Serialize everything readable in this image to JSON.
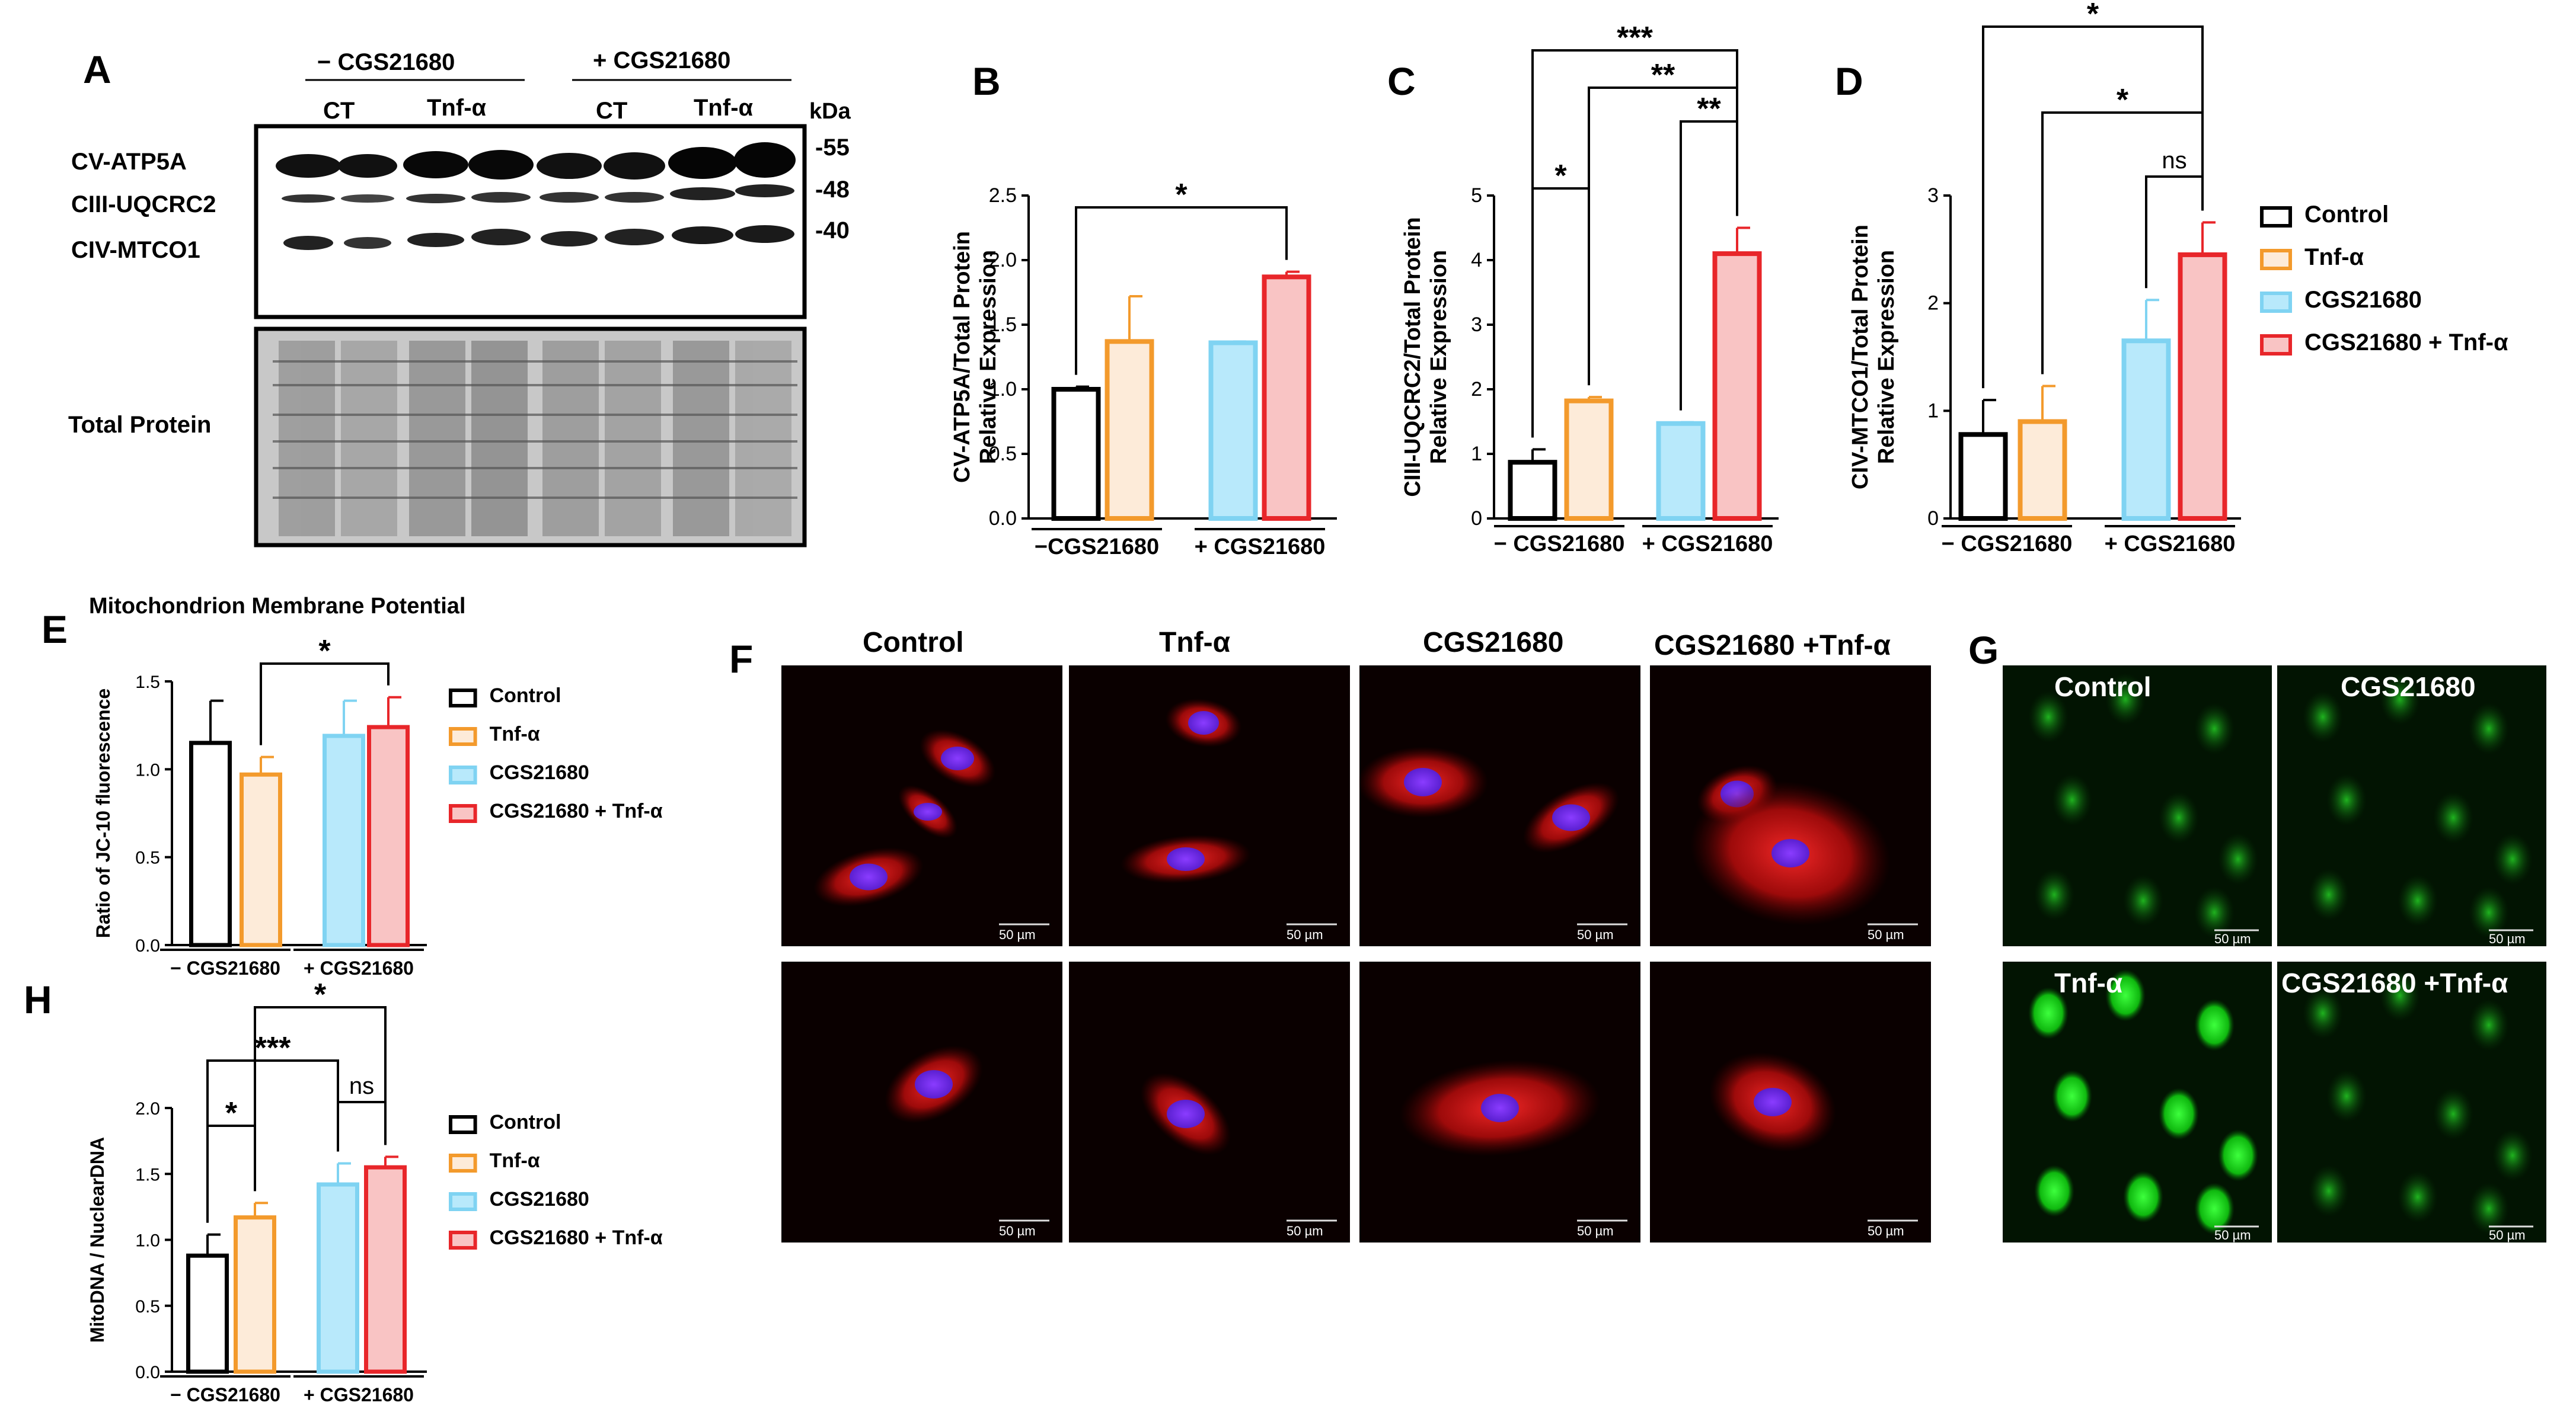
{
  "panel_letters": {
    "A": "A",
    "B": "B",
    "C": "C",
    "D": "D",
    "E": "E",
    "F": "F",
    "G": "G",
    "H": "H"
  },
  "colors": {
    "control": "#000000",
    "tnf": "#F39A2C",
    "cgs": "#7FD3F2",
    "cgs_tnf": "#E8262A",
    "control_fill": "#FFFFFF",
    "tnf_fill": "#FDEBD9",
    "cgs_fill": "#B8E9FB",
    "cgs_tnf_fill": "#F9C4C4"
  },
  "legend": [
    "Control",
    "Tnf-α",
    "CGS21680",
    "CGS21680 + Tnf-α"
  ],
  "blot": {
    "group_minus": "− CGS21680",
    "group_plus": "+ CGS21680",
    "lanes": [
      "CT",
      "Tnf-α",
      "CT",
      "Tnf-α"
    ],
    "kda": "kDa",
    "markers": [
      "-55",
      "-48",
      "-40"
    ],
    "bands": [
      "CV-ATP5A",
      "CIII-UQCRC2",
      "CIV-MTCO1"
    ],
    "total": "Total Protein"
  },
  "chart_data": [
    {
      "panel": "B",
      "type": "bar",
      "ylabel": "CV-ATP5A/Total Protein\nRelative Expression",
      "groups": [
        "−CGS21680",
        "+ CGS21680"
      ],
      "ylim": [
        0,
        2.5
      ],
      "yticks": [
        "0.0",
        "0.5",
        "1.0",
        "1.5",
        "2.0",
        "2.5"
      ],
      "series": [
        {
          "name": "Control",
          "values": [
            1.0
          ]
        },
        {
          "name": "Tnf-α",
          "values": [
            1.37
          ]
        },
        {
          "name": "CGS21680",
          "values": [
            1.36
          ]
        },
        {
          "name": "CGS21680 + Tnf-α",
          "values": [
            1.87
          ]
        }
      ],
      "errors": [
        0.02,
        0.35,
        0.01,
        0.04
      ],
      "annotations": [
        {
          "from": 0,
          "to": 3,
          "label": "*"
        }
      ]
    },
    {
      "panel": "C",
      "type": "bar",
      "ylabel": "CIII-UQCRC2/Total Protein\nRelative Expression",
      "groups": [
        "− CGS21680",
        "+ CGS21680"
      ],
      "ylim": [
        0,
        5
      ],
      "yticks": [
        "0",
        "1",
        "2",
        "3",
        "4",
        "5"
      ],
      "series": [
        {
          "name": "Control",
          "values": [
            0.87
          ]
        },
        {
          "name": "Tnf-α",
          "values": [
            1.82
          ]
        },
        {
          "name": "CGS21680",
          "values": [
            1.47
          ]
        },
        {
          "name": "CGS21680 + Tnf-α",
          "values": [
            4.1
          ]
        }
      ],
      "errors": [
        0.2,
        0.06,
        0.02,
        0.4
      ],
      "annotations": [
        {
          "from": 0,
          "to": 1,
          "label": "*"
        },
        {
          "from": 2,
          "to": 3,
          "label": "**"
        },
        {
          "from": 1,
          "to": 3,
          "label": "**"
        },
        {
          "from": 0,
          "to": 3,
          "label": "***"
        }
      ]
    },
    {
      "panel": "D",
      "type": "bar",
      "ylabel": "CIV-MTCO1/Total Protein\nRelative Expression",
      "groups": [
        "− CGS21680",
        "+ CGS21680"
      ],
      "ylim": [
        0,
        3
      ],
      "yticks": [
        "0",
        "1",
        "2",
        "3"
      ],
      "series": [
        {
          "name": "Control",
          "values": [
            0.78
          ]
        },
        {
          "name": "Tnf-α",
          "values": [
            0.9
          ]
        },
        {
          "name": "CGS21680",
          "values": [
            1.65
          ]
        },
        {
          "name": "CGS21680 + Tnf-α",
          "values": [
            2.45
          ]
        }
      ],
      "errors": [
        0.32,
        0.33,
        0.38,
        0.3
      ],
      "annotations": [
        {
          "from": 2,
          "to": 3,
          "label": "ns"
        },
        {
          "from": 1,
          "to": 3,
          "label": "*"
        },
        {
          "from": 0,
          "to": 3,
          "label": "*"
        }
      ]
    },
    {
      "panel": "E",
      "type": "bar",
      "title": "Mitochondrion Membrane Potential",
      "ylabel": "Ratio of JC-10 fluorescence",
      "groups": [
        "− CGS21680",
        "+ CGS21680"
      ],
      "ylim": [
        0,
        1.5
      ],
      "yticks": [
        "0.0",
        "0.5",
        "1.0",
        "1.5"
      ],
      "series": [
        {
          "name": "Control",
          "values": [
            1.15
          ]
        },
        {
          "name": "Tnf-α",
          "values": [
            0.97
          ]
        },
        {
          "name": "CGS21680",
          "values": [
            1.19
          ]
        },
        {
          "name": "CGS21680 + Tnf-α",
          "values": [
            1.24
          ]
        }
      ],
      "errors": [
        0.24,
        0.1,
        0.2,
        0.17
      ],
      "annotations": [
        {
          "from": 1,
          "to": 3,
          "label": "*"
        }
      ]
    },
    {
      "panel": "H",
      "type": "bar",
      "ylabel": "MitoDNA / NuclearDNA",
      "groups": [
        "− CGS21680",
        "+ CGS21680"
      ],
      "ylim": [
        0,
        2
      ],
      "yticks": [
        "0.0",
        "0.5",
        "1.0",
        "1.5",
        "2.0"
      ],
      "series": [
        {
          "name": "Control",
          "values": [
            0.88
          ]
        },
        {
          "name": "Tnf-α",
          "values": [
            1.17
          ]
        },
        {
          "name": "CGS21680",
          "values": [
            1.42
          ]
        },
        {
          "name": "CGS21680 + Tnf-α",
          "values": [
            1.55
          ]
        }
      ],
      "errors": [
        0.16,
        0.11,
        0.16,
        0.08
      ],
      "annotations": [
        {
          "from": 0,
          "to": 1,
          "label": "*"
        },
        {
          "from": 2,
          "to": 3,
          "label": "ns"
        },
        {
          "from": 0,
          "to": 2,
          "label": "***"
        },
        {
          "from": 1,
          "to": 3,
          "label": "*"
        }
      ]
    }
  ],
  "micro_f": {
    "titles": [
      "Control",
      "Tnf-α",
      "CGS21680",
      "CGS21680 +Tnf-α"
    ],
    "scale": "50 µm"
  },
  "micro_g": {
    "labels": [
      "Control",
      "CGS21680",
      "Tnf-α",
      "CGS21680 +Tnf-α"
    ],
    "scale": "50 µm"
  }
}
